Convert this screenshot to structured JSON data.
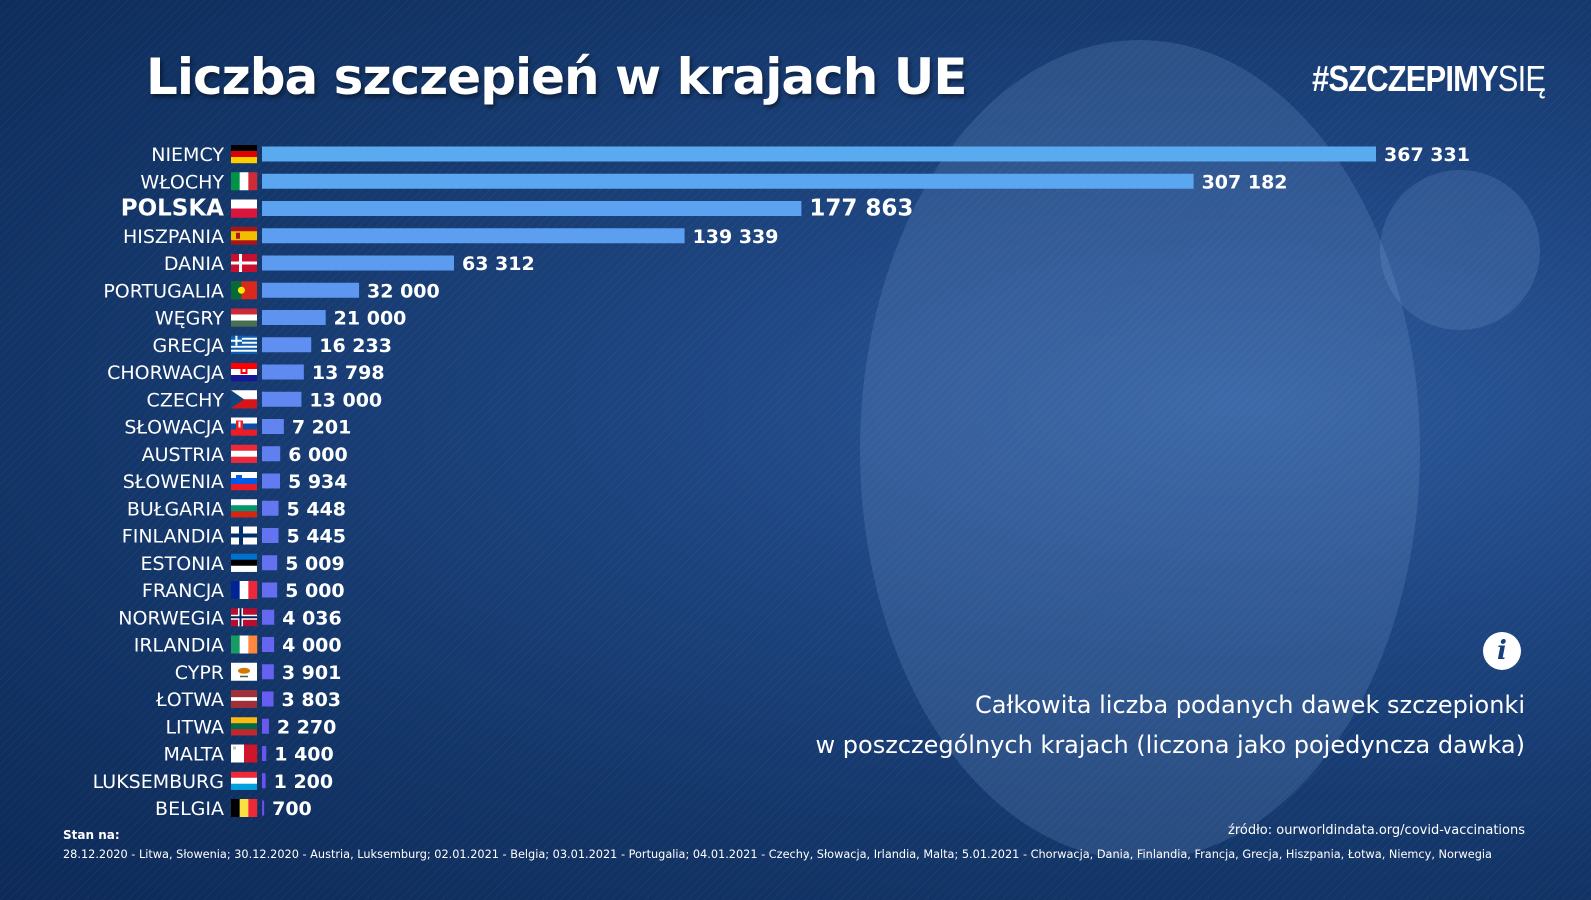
{
  "title": "Liczba szczepień w krajach UE",
  "hashtag": {
    "bold": "#SZCZEPIMY",
    "light": "SIĘ"
  },
  "info_icon": "i",
  "description": {
    "line1": "Całkowita liczba podanych dawek szczepionki",
    "line2": "w poszczególnych krajach (liczona jako pojedyncza dawka)"
  },
  "source": "źródło: ourworldindata.org/covid-vaccinations",
  "status": {
    "label": "Stan na:",
    "text": "28.12.2020 - Litwa, Słowenia; 30.12.2020 - Austria, Luksemburg; 02.01.2021 - Belgia; 03.01.2021 - Portugalia;  04.01.2021 - Czechy, Słowacja, Irlandia, Malta;  5.01.2021 - Chorwacja, Dania, Finlandia, Francja, Grecja, Hiszpania, Łotwa, Niemcy, Norwegia"
  },
  "chart_data": {
    "type": "bar",
    "orientation": "horizontal",
    "categories": [
      "NIEMCY",
      "WŁOCHY",
      "POLSKA",
      "HISZPANIA",
      "DANIA",
      "PORTUGALIA",
      "WĘGRY",
      "GRECJA",
      "CHORWACJA",
      "CZECHY",
      "SŁOWACJA",
      "AUSTRIA",
      "SŁOWENIA",
      "BUŁGARIA",
      "FINLANDIA",
      "ESTONIA",
      "FRANCJA",
      "NORWEGIA",
      "IRLANDIA",
      "CYPR",
      "ŁOTWA",
      "LITWA",
      "MALTA",
      "LUKSEMBURG",
      "BELGIA"
    ],
    "values": [
      367331,
      307182,
      177863,
      139339,
      63312,
      32000,
      21000,
      16233,
      13798,
      13000,
      7201,
      6000,
      5934,
      5448,
      5445,
      5009,
      5000,
      4036,
      4000,
      3901,
      3803,
      2270,
      1400,
      1200,
      700
    ],
    "value_labels": [
      "367 331",
      "307 182",
      "177 863",
      "139 339",
      "63 312",
      "32 000",
      "21  000",
      "16 233",
      "13 798",
      "13 000",
      "7 201",
      "6 000",
      "5 934",
      "5 448",
      "5 445",
      "5 009",
      "5 000",
      "4 036",
      "4 000",
      "3 901",
      "3 803",
      "2 270",
      "1 400",
      "1 200",
      "700"
    ],
    "highlight": "POLSKA",
    "flags": [
      "flag-de",
      "flag-it",
      "flag-pl",
      "flag-es",
      "flag-dk",
      "flag-pt",
      "flag-hu",
      "flag-gr",
      "flag-hr",
      "flag-cz",
      "flag-sk",
      "flag-at",
      "flag-si",
      "flag-bg",
      "flag-fi",
      "flag-ee",
      "flag-fr",
      "flag-no",
      "flag-ie",
      "flag-cy",
      "flag-lv",
      "flag-lt",
      "flag-mt",
      "flag-lu",
      "flag-be"
    ],
    "colors": {
      "bar_top": "#5aaaf0",
      "bar_bottom": "#6a4ef0"
    },
    "xlim": [
      0,
      367331
    ]
  }
}
